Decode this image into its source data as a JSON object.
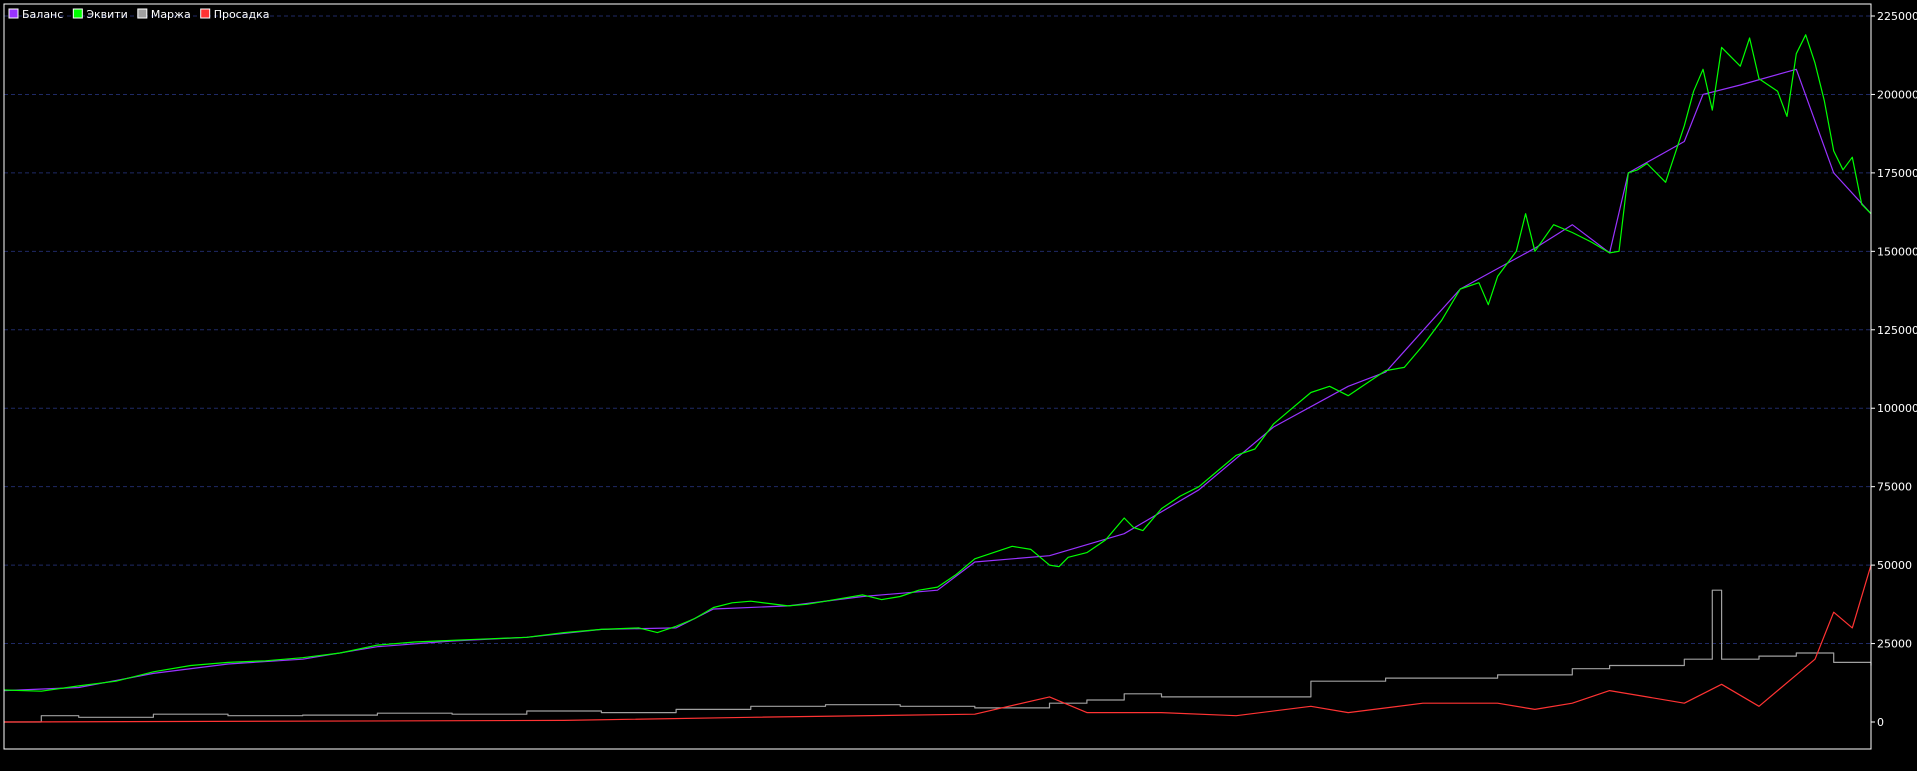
{
  "chart_data": {
    "type": "line",
    "title": "",
    "xlabel": "",
    "ylabel": "",
    "ylim": [
      0,
      225000
    ],
    "yticks": [
      0,
      25000,
      50000,
      75000,
      100000,
      125000,
      150000,
      175000,
      200000,
      225000
    ],
    "ytick_labels": [
      "0",
      "25000",
      "50000",
      "75000",
      "100000",
      "125000",
      "150000",
      "175000",
      "200000",
      "225000"
    ],
    "grid": "horizontal-dashed",
    "legend_position": "top-left",
    "legend": [
      {
        "key": "balance",
        "label": "Баланс",
        "color": "#9933ff"
      },
      {
        "key": "equity",
        "label": "Эквити",
        "color": "#00ff00"
      },
      {
        "key": "margin",
        "label": "Маржа",
        "color": "#a0a0a0"
      },
      {
        "key": "drawdown",
        "label": "Просадка",
        "color": "#ff3333"
      }
    ],
    "x_domain": [
      0,
      1
    ],
    "series": [
      {
        "key": "equity",
        "name": "Эквити",
        "color": "#00ff00",
        "points": [
          [
            0.0,
            10200
          ],
          [
            0.02,
            9800
          ],
          [
            0.04,
            11500
          ],
          [
            0.06,
            13000
          ],
          [
            0.08,
            16000
          ],
          [
            0.1,
            18000
          ],
          [
            0.12,
            19000
          ],
          [
            0.14,
            19500
          ],
          [
            0.16,
            20500
          ],
          [
            0.18,
            22000
          ],
          [
            0.2,
            24500
          ],
          [
            0.22,
            25500
          ],
          [
            0.24,
            26000
          ],
          [
            0.26,
            26500
          ],
          [
            0.28,
            27000
          ],
          [
            0.3,
            28500
          ],
          [
            0.32,
            29500
          ],
          [
            0.34,
            30000
          ],
          [
            0.35,
            28500
          ],
          [
            0.36,
            30500
          ],
          [
            0.37,
            33000
          ],
          [
            0.38,
            36500
          ],
          [
            0.39,
            38000
          ],
          [
            0.4,
            38500
          ],
          [
            0.42,
            37000
          ],
          [
            0.43,
            37500
          ],
          [
            0.44,
            38500
          ],
          [
            0.46,
            40500
          ],
          [
            0.47,
            39000
          ],
          [
            0.48,
            40000
          ],
          [
            0.49,
            42000
          ],
          [
            0.5,
            43000
          ],
          [
            0.51,
            47000
          ],
          [
            0.52,
            52000
          ],
          [
            0.53,
            54000
          ],
          [
            0.54,
            56000
          ],
          [
            0.55,
            55000
          ],
          [
            0.56,
            50000
          ],
          [
            0.565,
            49500
          ],
          [
            0.57,
            52500
          ],
          [
            0.58,
            54000
          ],
          [
            0.59,
            58000
          ],
          [
            0.6,
            65000
          ],
          [
            0.605,
            62000
          ],
          [
            0.61,
            61000
          ],
          [
            0.62,
            68000
          ],
          [
            0.63,
            72000
          ],
          [
            0.64,
            75000
          ],
          [
            0.65,
            80000
          ],
          [
            0.66,
            85000
          ],
          [
            0.67,
            87000
          ],
          [
            0.68,
            95000
          ],
          [
            0.69,
            100000
          ],
          [
            0.7,
            105000
          ],
          [
            0.71,
            107000
          ],
          [
            0.72,
            104000
          ],
          [
            0.73,
            108000
          ],
          [
            0.74,
            112000
          ],
          [
            0.75,
            113000
          ],
          [
            0.76,
            120000
          ],
          [
            0.77,
            128000
          ],
          [
            0.78,
            138000
          ],
          [
            0.79,
            140000
          ],
          [
            0.795,
            133000
          ],
          [
            0.8,
            142000
          ],
          [
            0.81,
            150000
          ],
          [
            0.815,
            162000
          ],
          [
            0.82,
            150000
          ],
          [
            0.83,
            158500
          ],
          [
            0.84,
            156000
          ],
          [
            0.85,
            153000
          ],
          [
            0.86,
            149500
          ],
          [
            0.865,
            150000
          ],
          [
            0.87,
            175000
          ],
          [
            0.875,
            176000
          ],
          [
            0.88,
            178000
          ],
          [
            0.89,
            172000
          ],
          [
            0.9,
            190000
          ],
          [
            0.905,
            201000
          ],
          [
            0.91,
            208000
          ],
          [
            0.915,
            195000
          ],
          [
            0.92,
            215000
          ],
          [
            0.93,
            209000
          ],
          [
            0.935,
            218000
          ],
          [
            0.94,
            205000
          ],
          [
            0.95,
            201000
          ],
          [
            0.955,
            193000
          ],
          [
            0.96,
            213000
          ],
          [
            0.965,
            219000
          ],
          [
            0.97,
            210000
          ],
          [
            0.975,
            198000
          ],
          [
            0.98,
            182000
          ],
          [
            0.985,
            176000
          ],
          [
            0.99,
            180000
          ],
          [
            0.995,
            165000
          ],
          [
            1.0,
            162000
          ]
        ]
      },
      {
        "key": "balance",
        "name": "Баланс",
        "color": "#9933ff",
        "points": [
          [
            0.0,
            10000
          ],
          [
            0.04,
            11000
          ],
          [
            0.08,
            15500
          ],
          [
            0.12,
            18500
          ],
          [
            0.16,
            20000
          ],
          [
            0.2,
            24000
          ],
          [
            0.24,
            25800
          ],
          [
            0.28,
            27000
          ],
          [
            0.32,
            29500
          ],
          [
            0.36,
            30000
          ],
          [
            0.38,
            36000
          ],
          [
            0.42,
            37000
          ],
          [
            0.46,
            40000
          ],
          [
            0.5,
            42000
          ],
          [
            0.52,
            51000
          ],
          [
            0.56,
            53000
          ],
          [
            0.6,
            60000
          ],
          [
            0.64,
            74000
          ],
          [
            0.68,
            94000
          ],
          [
            0.72,
            107000
          ],
          [
            0.74,
            111500
          ],
          [
            0.78,
            138000
          ],
          [
            0.82,
            151000
          ],
          [
            0.84,
            158500
          ],
          [
            0.86,
            149500
          ],
          [
            0.87,
            175000
          ],
          [
            0.9,
            185000
          ],
          [
            0.91,
            200000
          ],
          [
            0.93,
            203000
          ],
          [
            0.96,
            208000
          ],
          [
            0.98,
            175000
          ],
          [
            1.0,
            162000
          ]
        ]
      },
      {
        "key": "margin",
        "name": "Маржа",
        "color": "#a0a0a0",
        "points": [
          [
            0.0,
            0
          ],
          [
            0.02,
            2000
          ],
          [
            0.04,
            1500
          ],
          [
            0.08,
            2500
          ],
          [
            0.12,
            2000
          ],
          [
            0.16,
            2200
          ],
          [
            0.2,
            2800
          ],
          [
            0.24,
            2500
          ],
          [
            0.28,
            3500
          ],
          [
            0.32,
            3000
          ],
          [
            0.36,
            4000
          ],
          [
            0.4,
            5000
          ],
          [
            0.44,
            5500
          ],
          [
            0.48,
            5000
          ],
          [
            0.52,
            4500
          ],
          [
            0.56,
            6000
          ],
          [
            0.58,
            7000
          ],
          [
            0.6,
            9000
          ],
          [
            0.62,
            8000
          ],
          [
            0.66,
            8000
          ],
          [
            0.7,
            13000
          ],
          [
            0.74,
            14000
          ],
          [
            0.78,
            14000
          ],
          [
            0.8,
            15000
          ],
          [
            0.84,
            17000
          ],
          [
            0.86,
            18000
          ],
          [
            0.88,
            18000
          ],
          [
            0.9,
            20000
          ],
          [
            0.915,
            42000
          ],
          [
            0.92,
            20000
          ],
          [
            0.94,
            21000
          ],
          [
            0.96,
            22000
          ],
          [
            0.98,
            19000
          ],
          [
            1.0,
            18000
          ]
        ]
      },
      {
        "key": "drawdown",
        "name": "Просадка",
        "color": "#ff3333",
        "points": [
          [
            0.0,
            0
          ],
          [
            0.3,
            500
          ],
          [
            0.4,
            1500
          ],
          [
            0.52,
            2500
          ],
          [
            0.56,
            8000
          ],
          [
            0.58,
            3000
          ],
          [
            0.62,
            3000
          ],
          [
            0.66,
            2000
          ],
          [
            0.7,
            5000
          ],
          [
            0.72,
            3000
          ],
          [
            0.76,
            6000
          ],
          [
            0.8,
            6000
          ],
          [
            0.82,
            4000
          ],
          [
            0.84,
            6000
          ],
          [
            0.86,
            10000
          ],
          [
            0.88,
            8000
          ],
          [
            0.9,
            6000
          ],
          [
            0.92,
            12000
          ],
          [
            0.94,
            5000
          ],
          [
            0.96,
            15000
          ],
          [
            0.97,
            20000
          ],
          [
            0.98,
            35000
          ],
          [
            0.99,
            30000
          ],
          [
            1.0,
            50000
          ]
        ]
      }
    ]
  }
}
